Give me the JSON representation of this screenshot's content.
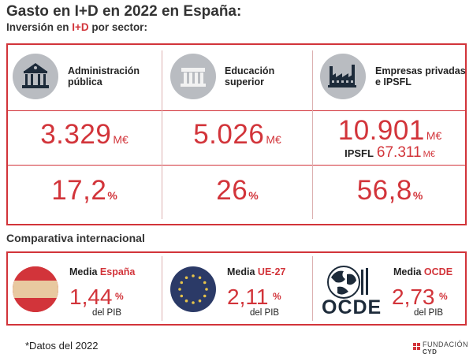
{
  "header": {
    "title": "Gasto en I+D en 2022 en España:",
    "subtitle_pre": "Inversión en ",
    "subtitle_highlight": "I+D",
    "subtitle_post": " por sector:"
  },
  "sectors": [
    {
      "label_line1": "Administración",
      "label_line2": "pública",
      "icon": "government-building-icon",
      "amount": "3.329",
      "unit": "M€",
      "percent": "17,2",
      "percent_symbol": "%"
    },
    {
      "label_line1": "Educación",
      "label_line2": "superior",
      "icon": "university-columns-icon",
      "amount": "5.026",
      "unit": "M€",
      "percent": "26",
      "percent_symbol": "%"
    },
    {
      "label_line1": "Empresas privadas",
      "label_line2": "e IPSFL",
      "icon": "factory-icon",
      "amount": "10.901",
      "unit": "M€",
      "ipsfl_label": "IPSFL",
      "ipsfl_amount": "67.311",
      "ipsfl_unit": "M€",
      "percent": "56,8",
      "percent_symbol": "%"
    }
  ],
  "comparison": {
    "heading": "Comparativa internacional",
    "items": [
      {
        "media": "Media",
        "region": "España",
        "value": "1,44",
        "percent_symbol": "%",
        "pib": "del PIB",
        "icon": "spain-flag-icon"
      },
      {
        "media": "Media",
        "region": "UE-27",
        "value": "2,11",
        "percent_symbol": "%",
        "pib": "del PIB",
        "icon": "eu-flag-icon"
      },
      {
        "media": "Media",
        "region": "OCDE",
        "value": "2,73",
        "percent_symbol": "%",
        "pib": "del PIB",
        "icon": "ocde-logo-icon",
        "logo_text": "OCDE"
      }
    ]
  },
  "footer": {
    "note": "*Datos del 2022",
    "brand_line1": "FUNDACIÓN",
    "brand_line2": "CYD"
  },
  "colors": {
    "accent": "#d2343a",
    "icon_circle": "#b9bcc1",
    "eu_blue": "#2b3a67",
    "spain_yellow": "#e8c9a0"
  }
}
